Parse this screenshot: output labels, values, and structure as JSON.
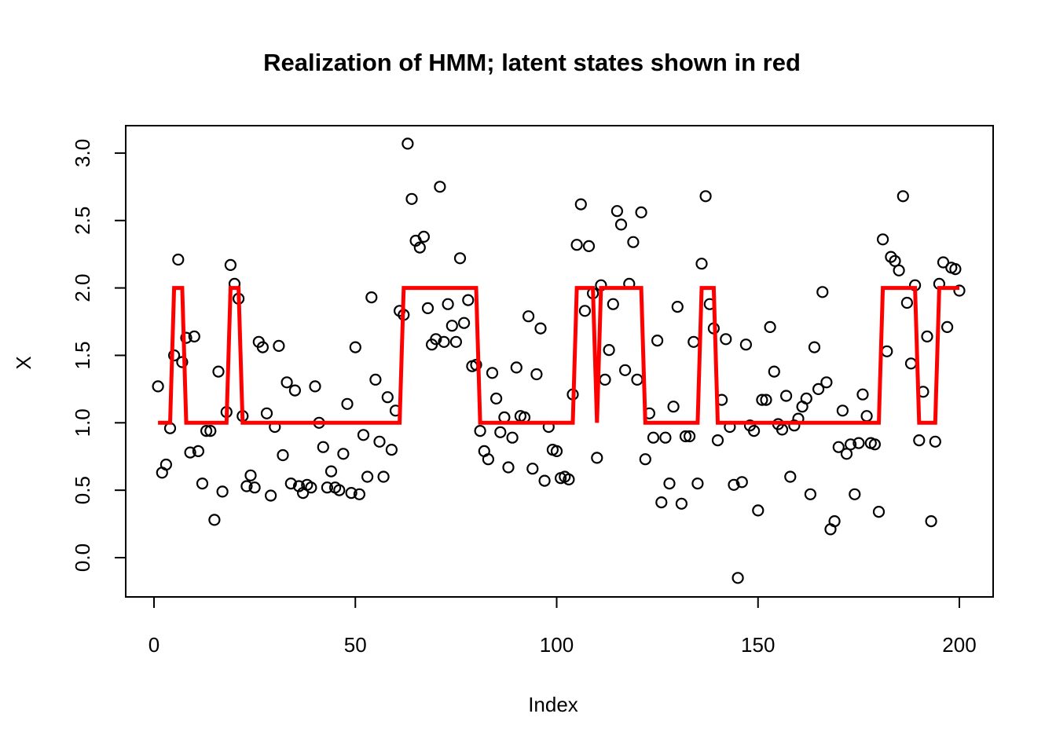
{
  "chart_data": {
    "type": "scatter",
    "title": "Realization of HMM; latent states shown in red",
    "xlabel": "Index",
    "ylabel": "X",
    "legend": "none",
    "grid": false,
    "x_ticks": [
      0,
      50,
      100,
      150,
      200
    ],
    "y_ticks": [
      0.0,
      0.5,
      1.0,
      1.5,
      2.0,
      2.5,
      3.0
    ],
    "y_tick_labels": [
      "0.0",
      "0.5",
      "1.0",
      "1.5",
      "2.0",
      "2.5",
      "3.0"
    ],
    "xlim": [
      -6.96,
      207.96
    ],
    "ylim": [
      -0.28,
      3.2
    ],
    "point_color": "#000000",
    "line_color": "#FF0000",
    "x_start": 1,
    "series": [
      {
        "name": "observations",
        "type": "points",
        "values": [
          1.27,
          0.63,
          0.69,
          0.96,
          1.5,
          2.21,
          1.45,
          1.63,
          0.78,
          1.64,
          0.79,
          0.55,
          0.94,
          0.94,
          0.28,
          1.38,
          0.49,
          1.08,
          2.17,
          2.03,
          1.92,
          1.05,
          0.53,
          0.61,
          0.52,
          1.6,
          1.56,
          1.07,
          0.46,
          0.97,
          1.57,
          0.76,
          1.3,
          0.55,
          1.24,
          0.53,
          0.48,
          0.54,
          0.52,
          1.27,
          1.0,
          0.82,
          0.52,
          0.64,
          0.52,
          0.5,
          0.77,
          1.14,
          0.48,
          1.56,
          0.47,
          0.91,
          0.6,
          1.93,
          1.32,
          0.86,
          0.6,
          1.19,
          0.8,
          1.09,
          1.83,
          1.8,
          3.07,
          2.66,
          2.35,
          2.3,
          2.38,
          1.85,
          1.58,
          1.62,
          2.75,
          1.6,
          1.88,
          1.72,
          1.6,
          2.22,
          1.74,
          1.91,
          1.42,
          1.43,
          0.94,
          0.79,
          0.73,
          1.37,
          1.18,
          0.93,
          1.04,
          0.67,
          0.89,
          1.41,
          1.05,
          1.04,
          1.79,
          0.66,
          1.36,
          1.7,
          0.57,
          0.97,
          0.8,
          0.79,
          0.59,
          0.6,
          0.58,
          1.21,
          2.32,
          2.62,
          1.83,
          2.31,
          1.96,
          0.74,
          2.02,
          1.32,
          1.54,
          1.88,
          2.57,
          2.47,
          1.39,
          2.03,
          2.34,
          1.32,
          2.56,
          0.73,
          1.07,
          0.89,
          1.61,
          0.41,
          0.89,
          0.55,
          1.12,
          1.86,
          0.4,
          0.9,
          0.9,
          1.6,
          0.55,
          2.18,
          2.68,
          1.88,
          1.7,
          0.87,
          1.17,
          1.62,
          0.97,
          0.54,
          -0.15,
          0.56,
          1.58,
          0.98,
          0.94,
          0.35,
          1.17,
          1.17,
          1.71,
          1.38,
          0.99,
          0.95,
          1.2,
          0.6,
          0.98,
          1.03,
          1.12,
          1.18,
          0.47,
          1.56,
          1.25,
          1.97,
          1.3,
          0.21,
          0.27,
          0.82,
          1.09,
          0.77,
          0.84,
          0.47,
          0.85,
          1.21,
          1.05,
          0.85,
          0.84,
          0.34,
          2.36,
          1.53,
          2.23,
          2.2,
          2.13,
          2.68,
          1.89,
          1.44,
          2.02,
          0.87,
          1.23,
          1.64,
          0.27,
          0.86,
          2.03,
          2.19,
          1.71,
          2.15,
          2.14,
          1.98
        ]
      },
      {
        "name": "latent states",
        "type": "line",
        "values": [
          1,
          1,
          1,
          1,
          2,
          2,
          2,
          1,
          1,
          1,
          1,
          1,
          1,
          1,
          1,
          1,
          1,
          1,
          2,
          2,
          2,
          1,
          1,
          1,
          1,
          1,
          1,
          1,
          1,
          1,
          1,
          1,
          1,
          1,
          1,
          1,
          1,
          1,
          1,
          1,
          1,
          1,
          1,
          1,
          1,
          1,
          1,
          1,
          1,
          1,
          1,
          1,
          1,
          1,
          1,
          1,
          1,
          1,
          1,
          1,
          1,
          2,
          2,
          2,
          2,
          2,
          2,
          2,
          2,
          2,
          2,
          2,
          2,
          2,
          2,
          2,
          2,
          2,
          2,
          2,
          1,
          1,
          1,
          1,
          1,
          1,
          1,
          1,
          1,
          1,
          1,
          1,
          1,
          1,
          1,
          1,
          1,
          1,
          1,
          1,
          1,
          1,
          1,
          1,
          2,
          2,
          2,
          2,
          2,
          1,
          2,
          2,
          2,
          2,
          2,
          2,
          2,
          2,
          2,
          2,
          2,
          1,
          1,
          1,
          1,
          1,
          1,
          1,
          1,
          1,
          1,
          1,
          1,
          1,
          1,
          2,
          2,
          2,
          2,
          1,
          1,
          1,
          1,
          1,
          1,
          1,
          1,
          1,
          1,
          1,
          1,
          1,
          1,
          1,
          1,
          1,
          1,
          1,
          1,
          1,
          1,
          1,
          1,
          1,
          1,
          1,
          1,
          1,
          1,
          1,
          1,
          1,
          1,
          1,
          1,
          1,
          1,
          1,
          1,
          1,
          2,
          2,
          2,
          2,
          2,
          2,
          2,
          2,
          2,
          1,
          1,
          1,
          1,
          1,
          2,
          2,
          2,
          2,
          2,
          2
        ]
      }
    ]
  }
}
